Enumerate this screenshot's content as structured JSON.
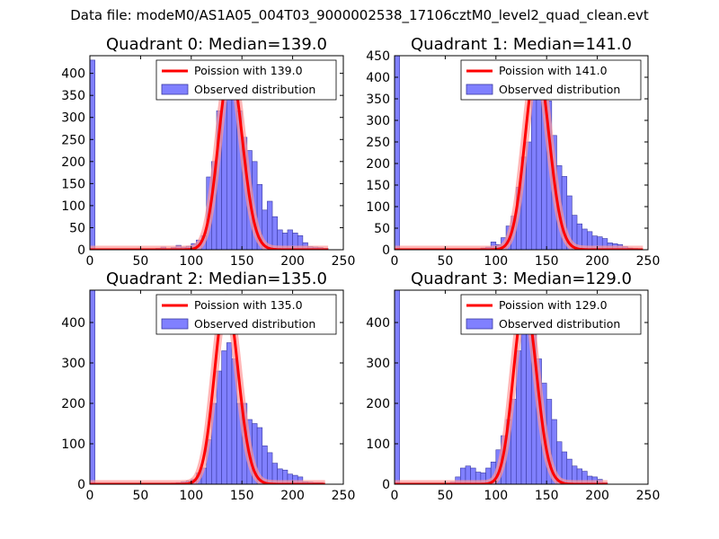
{
  "suptitle": "Data file: modeM0/AS1A05_004T03_9000002538_17106cztM0_level2_quad_clean.evt",
  "colors": {
    "hist_fill": "#8080ff",
    "hist_edge": "#3a3aa0",
    "fit_line": "#ff0000",
    "fit_line_alpha_band": "#ff9999"
  },
  "chart_data": [
    {
      "type": "bar",
      "title": "Quadrant 0: Median=139.0",
      "xlim": [
        0,
        250
      ],
      "ylim": [
        0,
        440
      ],
      "xticks": [
        0,
        50,
        100,
        150,
        200,
        250
      ],
      "yticks": [
        0,
        50,
        100,
        150,
        200,
        250,
        300,
        350,
        400
      ],
      "legend": {
        "placement": "top-right",
        "line_label": "Poission with 139.0",
        "hist_label": "Observed distribution"
      },
      "bin_width": 5,
      "bins": [
        [
          0,
          430
        ],
        [
          65,
          3
        ],
        [
          70,
          6
        ],
        [
          80,
          5
        ],
        [
          85,
          10
        ],
        [
          90,
          6
        ],
        [
          95,
          8
        ],
        [
          100,
          14
        ],
        [
          105,
          22
        ],
        [
          110,
          32
        ],
        [
          115,
          165
        ],
        [
          120,
          200
        ],
        [
          125,
          315
        ],
        [
          130,
          345
        ],
        [
          135,
          355
        ],
        [
          140,
          345
        ],
        [
          145,
          315
        ],
        [
          150,
          255
        ],
        [
          155,
          225
        ],
        [
          160,
          200
        ],
        [
          165,
          148
        ],
        [
          170,
          90
        ],
        [
          175,
          110
        ],
        [
          180,
          75
        ],
        [
          185,
          45
        ],
        [
          190,
          38
        ],
        [
          195,
          45
        ],
        [
          200,
          38
        ],
        [
          205,
          32
        ],
        [
          210,
          16
        ],
        [
          215,
          7
        ],
        [
          220,
          6
        ],
        [
          225,
          5
        ],
        [
          230,
          3
        ]
      ],
      "poisson": {
        "mean": 139.0,
        "amplitude": 412,
        "x_range": [
          0,
          235
        ]
      }
    },
    {
      "type": "bar",
      "title": "Quadrant 1: Median=141.0",
      "xlim": [
        0,
        250
      ],
      "ylim": [
        0,
        450
      ],
      "xticks": [
        0,
        50,
        100,
        150,
        200,
        250
      ],
      "yticks": [
        0,
        50,
        100,
        150,
        200,
        250,
        300,
        350,
        400,
        450
      ],
      "legend": {
        "placement": "top-right",
        "line_label": "Poission with 141.0",
        "hist_label": "Observed distribution"
      },
      "bin_width": 5,
      "bins": [
        [
          0,
          450
        ],
        [
          85,
          4
        ],
        [
          90,
          6
        ],
        [
          95,
          18
        ],
        [
          100,
          12
        ],
        [
          105,
          28
        ],
        [
          110,
          55
        ],
        [
          115,
          78
        ],
        [
          120,
          145
        ],
        [
          125,
          215
        ],
        [
          130,
          250
        ],
        [
          135,
          350
        ],
        [
          140,
          430
        ],
        [
          145,
          360
        ],
        [
          150,
          345
        ],
        [
          155,
          265
        ],
        [
          160,
          195
        ],
        [
          165,
          170
        ],
        [
          170,
          125
        ],
        [
          175,
          80
        ],
        [
          180,
          60
        ],
        [
          185,
          48
        ],
        [
          190,
          42
        ],
        [
          195,
          32
        ],
        [
          200,
          30
        ],
        [
          205,
          26
        ],
        [
          210,
          16
        ],
        [
          215,
          14
        ],
        [
          220,
          12
        ],
        [
          225,
          7
        ],
        [
          230,
          4
        ],
        [
          235,
          3
        ]
      ],
      "poisson": {
        "mean": 141.0,
        "amplitude": 430,
        "x_range": [
          0,
          245
        ]
      }
    },
    {
      "type": "bar",
      "title": "Quadrant 2: Median=135.0",
      "xlim": [
        0,
        250
      ],
      "ylim": [
        0,
        480
      ],
      "xticks": [
        0,
        50,
        100,
        150,
        200,
        250
      ],
      "yticks": [
        0,
        100,
        200,
        300,
        400
      ],
      "legend": {
        "placement": "top-right",
        "line_label": "Poission with 135.0",
        "hist_label": "Observed distribution"
      },
      "bin_width": 5,
      "bins": [
        [
          0,
          480
        ],
        [
          80,
          3
        ],
        [
          85,
          4
        ],
        [
          90,
          6
        ],
        [
          95,
          8
        ],
        [
          100,
          12
        ],
        [
          105,
          28
        ],
        [
          110,
          40
        ],
        [
          115,
          110
        ],
        [
          120,
          200
        ],
        [
          125,
          280
        ],
        [
          130,
          330
        ],
        [
          135,
          350
        ],
        [
          140,
          310
        ],
        [
          145,
          200
        ],
        [
          150,
          200
        ],
        [
          155,
          160
        ],
        [
          160,
          150
        ],
        [
          165,
          140
        ],
        [
          170,
          95
        ],
        [
          175,
          78
        ],
        [
          180,
          52
        ],
        [
          185,
          38
        ],
        [
          190,
          35
        ],
        [
          195,
          25
        ],
        [
          200,
          22
        ],
        [
          205,
          18
        ],
        [
          210,
          6
        ],
        [
          215,
          5
        ],
        [
          220,
          4
        ],
        [
          225,
          4
        ]
      ],
      "poisson": {
        "mean": 135.0,
        "amplitude": 460,
        "x_range": [
          0,
          232
        ]
      }
    },
    {
      "type": "bar",
      "title": "Quadrant 3: Median=129.0",
      "xlim": [
        0,
        250
      ],
      "ylim": [
        0,
        480
      ],
      "xticks": [
        0,
        50,
        100,
        150,
        200,
        250
      ],
      "yticks": [
        0,
        100,
        200,
        300,
        400
      ],
      "legend": {
        "placement": "top-right",
        "line_label": "Poission with 129.0",
        "hist_label": "Observed distribution"
      },
      "bin_width": 5,
      "bins": [
        [
          0,
          480
        ],
        [
          50,
          3
        ],
        [
          55,
          5
        ],
        [
          60,
          18
        ],
        [
          65,
          40
        ],
        [
          70,
          45
        ],
        [
          75,
          40
        ],
        [
          80,
          30
        ],
        [
          85,
          28
        ],
        [
          90,
          40
        ],
        [
          95,
          55
        ],
        [
          100,
          85
        ],
        [
          105,
          120
        ],
        [
          110,
          160
        ],
        [
          115,
          210
        ],
        [
          120,
          330
        ],
        [
          125,
          380
        ],
        [
          130,
          425
        ],
        [
          135,
          370
        ],
        [
          140,
          310
        ],
        [
          145,
          250
        ],
        [
          150,
          210
        ],
        [
          155,
          160
        ],
        [
          160,
          105
        ],
        [
          165,
          80
        ],
        [
          170,
          62
        ],
        [
          175,
          45
        ],
        [
          180,
          38
        ],
        [
          185,
          32
        ],
        [
          190,
          20
        ],
        [
          195,
          18
        ],
        [
          200,
          12
        ],
        [
          205,
          4
        ]
      ],
      "poisson": {
        "mean": 129.0,
        "amplitude": 455,
        "x_range": [
          0,
          210
        ]
      }
    }
  ]
}
